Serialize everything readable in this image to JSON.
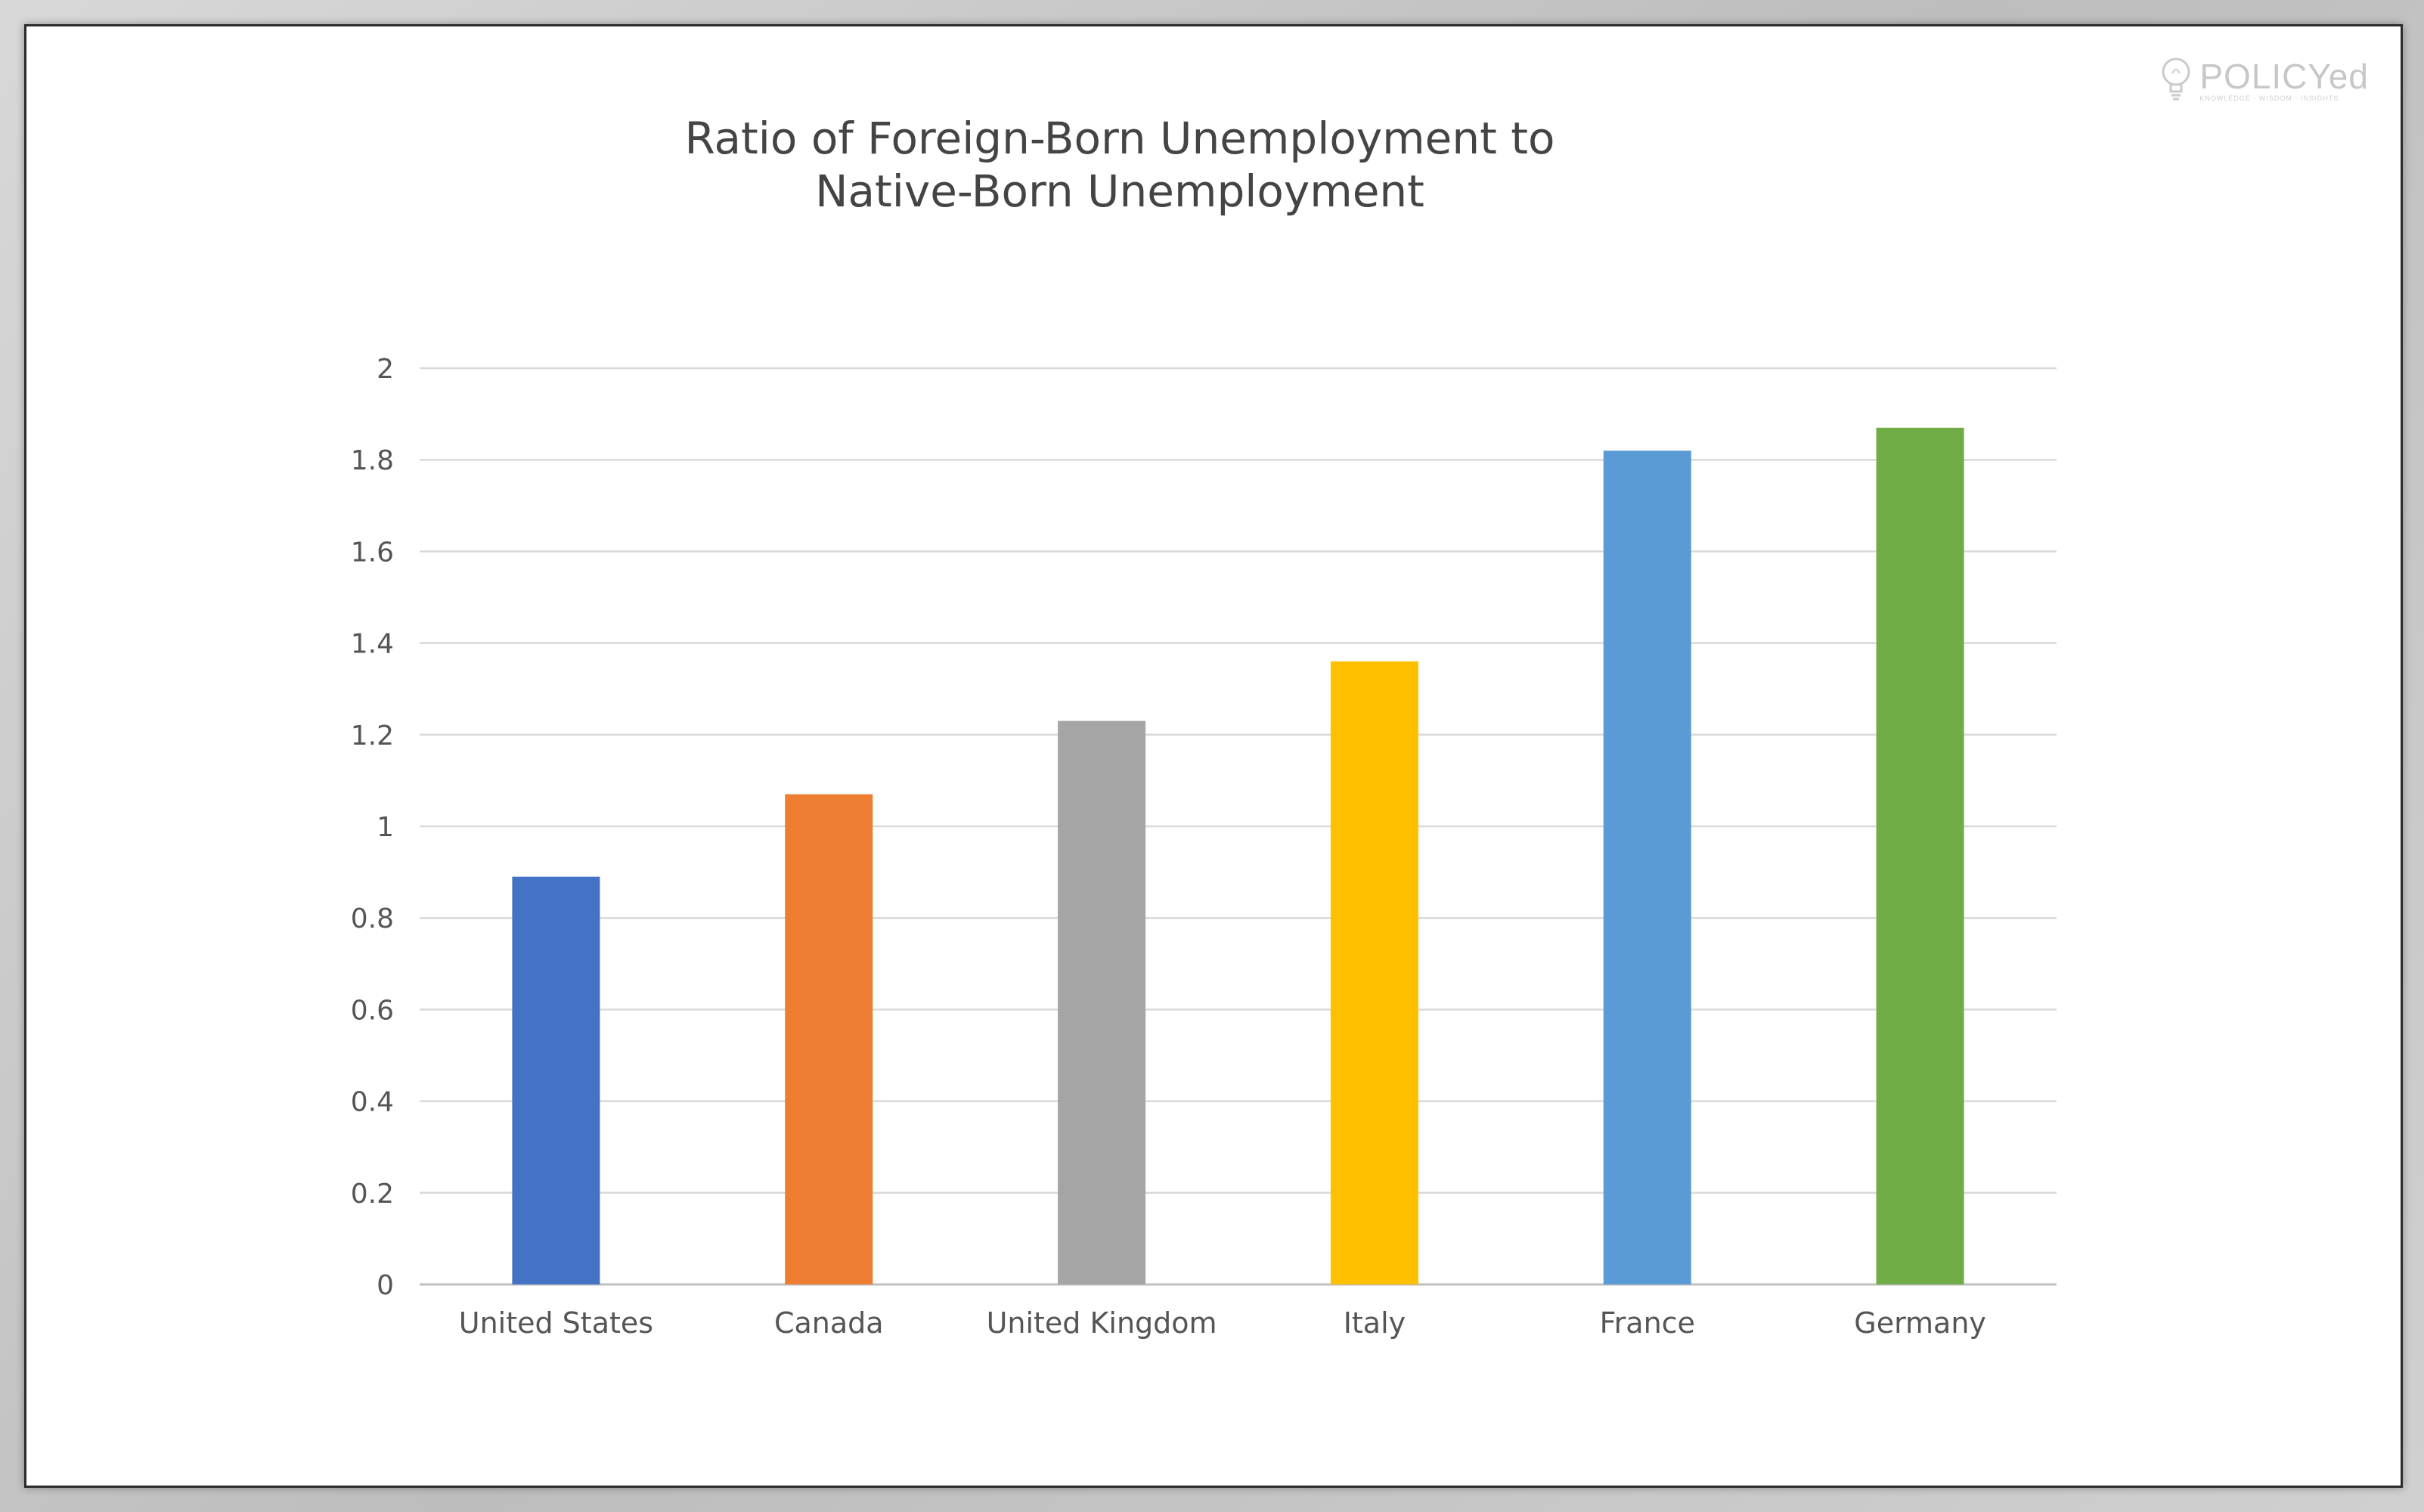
{
  "logo": {
    "name": "POLICYed",
    "tagline": "Knowledge · Wisdom · Insights",
    "color": "#9a9a9a"
  },
  "chart_data": {
    "type": "bar",
    "title": "Ratio of Foreign-Born Unemployment to Native-Born Unemployment",
    "title_lines": [
      "Ratio of Foreign-Born Unemployment to",
      "Native-Born Unemployment"
    ],
    "xlabel": "",
    "ylabel": "",
    "categories": [
      "United States",
      "Canada",
      "United Kingdom",
      "Italy",
      "France",
      "Germany"
    ],
    "values": [
      0.89,
      1.07,
      1.23,
      1.36,
      1.82,
      1.87
    ],
    "colors": [
      "#4472C4",
      "#ED7D31",
      "#A5A5A5",
      "#FFC000",
      "#5B9BD5",
      "#70AD47"
    ],
    "ylim": [
      0,
      2
    ],
    "yticks": [
      "0",
      "0.2",
      "0.4",
      "0.6",
      "0.8",
      "1",
      "1.2",
      "1.4",
      "1.6",
      "1.8",
      "2"
    ],
    "grid": true,
    "legend": "none"
  }
}
